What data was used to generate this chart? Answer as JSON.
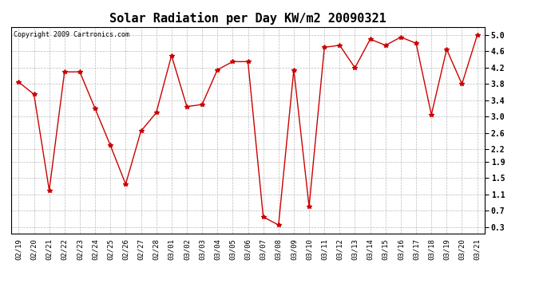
{
  "title": "Solar Radiation per Day KW/m2 20090321",
  "copyright": "Copyright 2009 Cartronics.com",
  "x_labels": [
    "02/19",
    "02/20",
    "02/21",
    "02/22",
    "02/23",
    "02/24",
    "02/25",
    "02/26",
    "02/27",
    "02/28",
    "03/01",
    "03/02",
    "03/03",
    "03/04",
    "03/05",
    "03/06",
    "03/07",
    "03/08",
    "03/09",
    "03/10",
    "03/11",
    "03/12",
    "03/13",
    "03/14",
    "03/15",
    "03/16",
    "03/17",
    "03/18",
    "03/19",
    "03/20",
    "03/21"
  ],
  "y_values": [
    3.85,
    3.55,
    1.2,
    4.1,
    4.1,
    3.2,
    2.3,
    1.35,
    2.65,
    3.1,
    4.5,
    3.25,
    3.3,
    4.15,
    4.35,
    4.35,
    0.55,
    0.35,
    4.15,
    0.8,
    4.7,
    4.75,
    4.2,
    4.9,
    4.75,
    4.95,
    4.8,
    3.05,
    4.65,
    3.8,
    5.0
  ],
  "line_color": "#cc0000",
  "marker": "*",
  "marker_size": 4,
  "bg_color": "#ffffff",
  "grid_color": "#bbbbbb",
  "yticks": [
    0.3,
    0.7,
    1.1,
    1.5,
    1.9,
    2.2,
    2.6,
    3.0,
    3.4,
    3.8,
    4.2,
    4.6,
    5.0
  ],
  "ylim": [
    0.15,
    5.2
  ],
  "title_fontsize": 11,
  "copyright_fontsize": 6,
  "tick_fontsize": 6.5,
  "ytick_fontsize": 7
}
